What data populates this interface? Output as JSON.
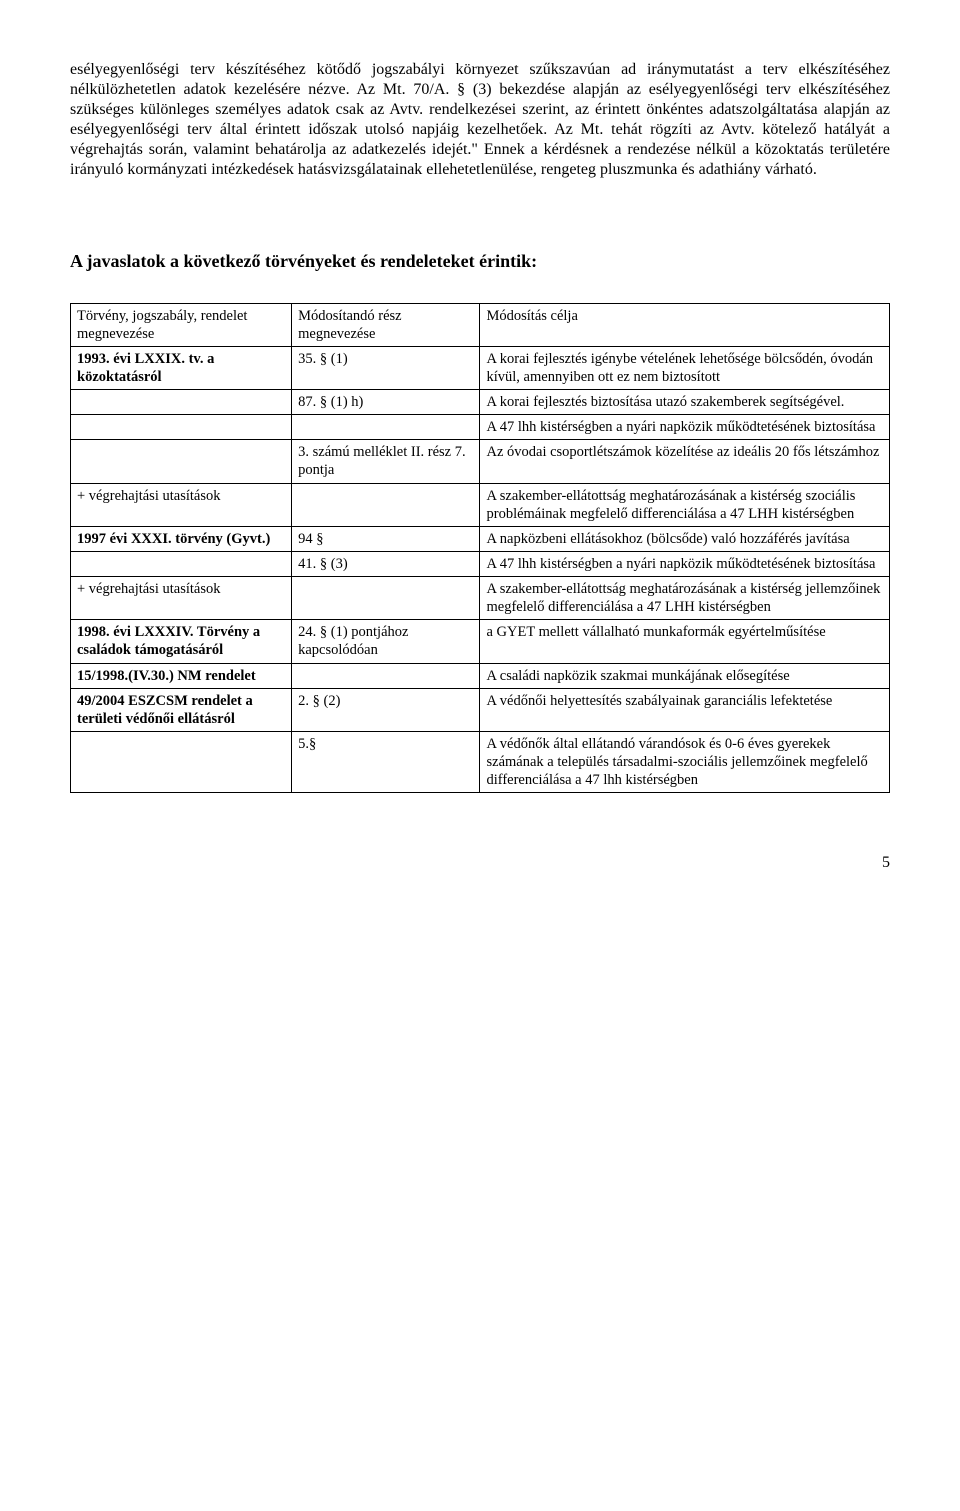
{
  "bodyText": "esélyegyenlőségi terv készítéséhez kötődő jogszabályi környezet szűkszavúan ad iránymutatást a terv elkészítéséhez nélkülözhetetlen adatok kezelésére nézve. Az Mt. 70/A. § (3) bekezdése alapján az esélyegyenlőségi terv elkészítéséhez szükséges különleges személyes adatok csak az Avtv. rendelkezései szerint, az érintett önkéntes adatszolgáltatása alapján az esélyegyenlőségi terv által érintett időszak utolsó napjáig kezelhetőek. Az Mt. tehát rögzíti az Avtv. kötelező hatályát a végrehajtás során, valamint behatárolja az adatkezelés idejét.\" Ennek a kérdésnek a rendezése nélkül a közoktatás területére irányuló kormányzati intézkedések hatásvizsgálatainak ellehetetlenülése, rengeteg pluszmunka és adathiány várható.",
  "sectionHeading": "A javaslatok a következő törvényeket és rendeleteket érintik:",
  "tableHeader": {
    "col1": "Törvény, jogszabály, rendelet megnevezése",
    "col2": "Módosítandó rész megnevezése",
    "col3": "Módosítás célja"
  },
  "rows": [
    {
      "c1": "1993. évi LXXIX. tv. a közoktatásról",
      "c1bold": true,
      "c2": "35. § (1)",
      "c3": "A korai fejlesztés igénybe vételének lehetősége bölcsődén, óvodán kívül, amennyiben ott ez nem biztosított"
    },
    {
      "c1": "",
      "c2": "87. § (1) h)",
      "c3": "A korai fejlesztés biztosítása utazó szakemberek segítségével."
    },
    {
      "c1": "",
      "c2": "",
      "c3": "A 47 lhh kistérségben a nyári napközik működtetésének biztosítása"
    },
    {
      "c1": "",
      "c2": "3. számú melléklet II. rész 7. pontja",
      "c3": "Az óvodai csoportlétszámok közelítése az ideális 20 fős létszámhoz"
    },
    {
      "c1": "+ végrehajtási utasítások",
      "c2": "",
      "c3": "A szakember-ellátottság meghatározásának a kistérség szociális problémáinak megfelelő differenciálása a 47 LHH kistérségben"
    },
    {
      "c1": "1997 évi XXXI. törvény (Gyvt.)",
      "c1bold": true,
      "c2": "94 §",
      "c3": "A napközbeni ellátásokhoz (bölcsőde) való hozzáférés javítása"
    },
    {
      "c1": "",
      "c2": "41. § (3)",
      "c3": "A 47 lhh kistérségben a nyári napközik működtetésének biztosítása"
    },
    {
      "c1": "+  végrehajtási utasítások",
      "c2": "",
      "c3": "A szakember-ellátottság meghatározásának a kistérség jellemzőinek megfelelő differenciálása a 47 LHH kistérségben"
    },
    {
      "c1": "1998. évi LXXXIV. Törvény a családok támogatásáról",
      "c1bold": true,
      "c2": "24. § (1) pontjához kapcsolódóan",
      "c3": "a GYET mellett vállalható munkaformák egyértelműsítése"
    },
    {
      "c1": "15/1998.(IV.30.) NM rendelet",
      "c1bold": true,
      "c2": "",
      "c3": "A családi napközik szakmai munkájának elősegítése"
    },
    {
      "c1": "49/2004 ESZCSM rendelet a területi védőnői ellátásról",
      "c1bold": true,
      "c2": "2. §  (2)",
      "c3": "A védőnői helyettesítés szabályainak garanciális lefektetése"
    },
    {
      "c1": "",
      "c2": "5.§",
      "c3": "A védőnők által ellátandó várandósok és 0-6 éves gyerekek számának a település társadalmi-szociális jellemzőinek megfelelő differenciálása a 47 lhh kistérségben"
    }
  ],
  "pageNumber": "5"
}
